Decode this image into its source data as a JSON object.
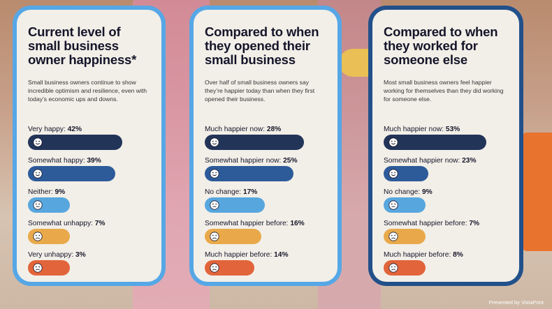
{
  "credit": "Presented by VistaPrint",
  "colors": {
    "very_positive": "#233459",
    "positive": "#2d5b9a",
    "neutral": "#58a6de",
    "negative": "#e9a94a",
    "very_negative": "#e2643a"
  },
  "chart_data": [
    {
      "type": "bar",
      "title": "Current level of small business owner happiness*",
      "subtitle": "Small business owners continue to show incredible optimism and resilience, even with today’s economic ups and downs.",
      "categories": [
        "Very happy",
        "Somewhat happy",
        "Neither",
        "Somewhat unhappy",
        "Very unhappy"
      ],
      "values": [
        42,
        39,
        9,
        7,
        3
      ],
      "value_labels": [
        "42%",
        "39%",
        "9%",
        "7%",
        "3%"
      ],
      "faces": [
        "smile-icon",
        "smile-icon",
        "neutral-face-icon",
        "frown-icon",
        "frown-icon"
      ],
      "bar_colors": [
        "#233459",
        "#2d5b9a",
        "#58a6de",
        "#e9a94a",
        "#e2643a"
      ],
      "xlim": [
        0,
        42
      ]
    },
    {
      "type": "bar",
      "title": "Compared to when they opened their small business",
      "subtitle": "Over half of small business owners say they’re happier today than when they first opened their business.",
      "categories": [
        "Much happier now",
        "Somewhat happier now",
        "No change",
        "Somewhat happier before",
        "Much happier before"
      ],
      "values": [
        28,
        25,
        17,
        16,
        14
      ],
      "value_labels": [
        "28%",
        "25%",
        "17%",
        "16%",
        "14%"
      ],
      "faces": [
        "smile-icon",
        "smile-icon",
        "neutral-face-icon",
        "frown-icon",
        "frown-icon"
      ],
      "bar_colors": [
        "#233459",
        "#2d5b9a",
        "#58a6de",
        "#e9a94a",
        "#e2643a"
      ],
      "xlim": [
        0,
        28
      ]
    },
    {
      "type": "bar",
      "title": "Compared to when they worked for someone else",
      "subtitle": "Most small business owners feel happier working for themselves than they did working for someone else.",
      "categories": [
        "Much happier now",
        "Somewhat happier now",
        "No change",
        "Somewhat happier before",
        "Much happier before"
      ],
      "values": [
        53,
        23,
        9,
        7,
        8
      ],
      "value_labels": [
        "53%",
        "23%",
        "9%",
        "7%",
        "8%"
      ],
      "faces": [
        "smile-icon",
        "smile-icon",
        "neutral-face-icon",
        "frown-icon",
        "frown-icon"
      ],
      "bar_colors": [
        "#233459",
        "#2d5b9a",
        "#58a6de",
        "#e9a94a",
        "#e2643a"
      ],
      "xlim": [
        0,
        53
      ]
    }
  ]
}
